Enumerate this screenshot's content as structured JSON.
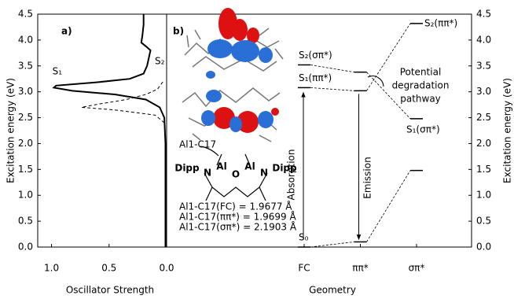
{
  "chart_data": [
    {
      "type": "line",
      "panel_label": "a)",
      "x_label": "Oscillator Strength",
      "y_label": "Excitation energy (eV)",
      "xlim": [
        1.12,
        0
      ],
      "xticks": [
        {
          "value": 1,
          "label": "1.0"
        },
        0.5,
        {
          "value": 0,
          "label": "0.0"
        }
      ],
      "ylim": [
        0,
        4.5
      ],
      "yticks": [
        {
          "value": 0,
          "label": "0.0"
        },
        0.5,
        {
          "value": 1,
          "label": "1.0"
        },
        1.5,
        {
          "value": 2,
          "label": "2.0"
        },
        2.5,
        {
          "value": 3,
          "label": "3.0"
        },
        3.5,
        {
          "value": 4,
          "label": "4.0"
        },
        4.5
      ],
      "series": [
        {
          "color": "#000000",
          "dashed": false,
          "x": [
            0.01,
            0.01,
            0.02,
            0.06,
            0.18,
            0.45,
            0.82,
            0.98,
            0.96,
            0.62,
            0.32,
            0.2,
            0.17,
            0.15,
            0.14,
            0.18,
            0.22,
            0.21,
            0.2,
            0.2
          ],
          "y": [
            0,
            2.0,
            2.5,
            2.7,
            2.85,
            2.95,
            3.02,
            3.08,
            3.12,
            3.18,
            3.25,
            3.35,
            3.5,
            3.7,
            3.8,
            3.88,
            3.95,
            4.1,
            4.3,
            4.5
          ]
        },
        {
          "color": "#000000",
          "dashed": true,
          "x": [
            0.02,
            0.1,
            0.45,
            0.74,
            0.6,
            0.35,
            0.18,
            0.08,
            0.03
          ],
          "y": [
            2.4,
            2.55,
            2.65,
            2.7,
            2.76,
            2.85,
            2.95,
            3.05,
            3.2
          ]
        }
      ],
      "annotations": [
        {
          "text": "S₁",
          "x": 0.95,
          "y": 3.3
        },
        {
          "text": "S₂",
          "x": 0.06,
          "y": 3.5
        }
      ]
    },
    {
      "type": "levels",
      "panel_label": "b)",
      "x_label": "Geometry",
      "y_label": "Excitation energy (eV)",
      "categories": [
        "FC",
        "ππ*",
        "σπ*"
      ],
      "ylim": [
        0,
        4.5
      ],
      "yticks": [
        {
          "value": 0,
          "label": "0.0"
        },
        0.5,
        {
          "value": 1,
          "label": "1.0"
        },
        1.5,
        {
          "value": 2,
          "label": "2.0"
        },
        2.5,
        {
          "value": 3,
          "label": "3.0"
        },
        3.5,
        {
          "value": 4,
          "label": "4.0"
        },
        4.5
      ],
      "series": [
        {
          "values": [
            0,
            0.1,
            1.48
          ],
          "labels": [
            "S₀",
            null,
            null
          ]
        },
        {
          "values": [
            3.08,
            3.02,
            4.32
          ],
          "labels": [
            "S₁(ππ*)",
            null,
            "S₂(ππ*)"
          ]
        },
        {
          "values": [
            3.52,
            3.38,
            2.48
          ],
          "labels": [
            "S₂(σπ*)",
            null,
            "S₁(σπ*)"
          ]
        }
      ],
      "absorption_label": "Absorption",
      "emission_label": "Emission",
      "pathway_label": [
        "Potential",
        "degradation",
        "pathway"
      ],
      "structure": {
        "bond_label": "Al1-C17",
        "atoms": [
          "Dipp",
          "N",
          "Al",
          "O",
          "Al",
          "N",
          "Dipp"
        ],
        "distances": [
          "Al1-C17(FC) = 1.9677 Å",
          "Al1-C17(ππ*) = 1.9699 Å",
          "Al1-C17(σπ*) = 2.1903 Å"
        ]
      }
    }
  ]
}
